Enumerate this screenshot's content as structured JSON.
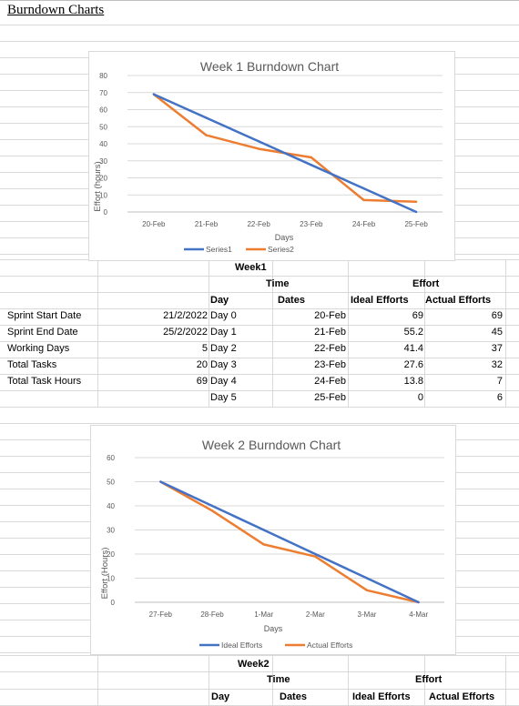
{
  "heading": "Burndown Charts",
  "week1_chart": {
    "title": "Week 1 Burndown Chart",
    "xlabel": "Days",
    "ylabel": "Effort (hours)",
    "legend": [
      "Series1",
      "Series2"
    ]
  },
  "week1_table": {
    "week_label": "Week1",
    "time_header": "Time",
    "effort_header": "Effort",
    "col_day": "Day",
    "col_dates": "Dates",
    "col_ideal": "Ideal Efforts",
    "col_actual": "Actual Efforts",
    "info": [
      {
        "label": "Sprint Start Date",
        "value": "21/2/2022"
      },
      {
        "label": "Sprint End Date",
        "value": "25/2/2022"
      },
      {
        "label": "Working Days",
        "value": "5"
      },
      {
        "label": "Total Tasks",
        "value": "20"
      },
      {
        "label": "Total Task Hours",
        "value": "69"
      },
      {
        "label": "",
        "value": ""
      }
    ],
    "rows": [
      {
        "day": "Day 0",
        "date": "20-Feb",
        "ideal": "69",
        "actual": "69"
      },
      {
        "day": "Day 1",
        "date": "21-Feb",
        "ideal": "55.2",
        "actual": "45"
      },
      {
        "day": "Day 2",
        "date": "22-Feb",
        "ideal": "41.4",
        "actual": "37"
      },
      {
        "day": "Day 3",
        "date": "23-Feb",
        "ideal": "27.6",
        "actual": "32"
      },
      {
        "day": "Day 4",
        "date": "24-Feb",
        "ideal": "13.8",
        "actual": "7"
      },
      {
        "day": "Day 5",
        "date": "25-Feb",
        "ideal": "0",
        "actual": "6"
      }
    ]
  },
  "week2_chart": {
    "title": "Week 2 Burndown Chart",
    "xlabel": "Days",
    "ylabel": "Effort (Hours)",
    "legend": [
      "Ideal Efforts",
      "Actual Efforts"
    ]
  },
  "week2_table": {
    "week_label": "Week2",
    "time_header": "Time",
    "effort_header": "Effort",
    "col_day": "Day",
    "col_dates": "Dates",
    "col_ideal": "Ideal Efforts",
    "col_actual": "Actual Efforts"
  },
  "chart_data": [
    {
      "type": "line",
      "title": "Week 1 Burndown Chart",
      "xlabel": "Days",
      "ylabel": "Effort (hours)",
      "ylim": [
        0,
        80
      ],
      "yticks": [
        0,
        10,
        20,
        30,
        40,
        50,
        60,
        70,
        80
      ],
      "categories": [
        "20-Feb",
        "21-Feb",
        "22-Feb",
        "23-Feb",
        "24-Feb",
        "25-Feb"
      ],
      "series": [
        {
          "name": "Series1",
          "color": "#4472C4",
          "values": [
            69,
            55.2,
            41.4,
            27.6,
            13.8,
            0
          ]
        },
        {
          "name": "Series2",
          "color": "#ED7D31",
          "values": [
            69,
            45,
            37,
            32,
            7,
            6
          ]
        }
      ],
      "grid": true,
      "legend": "bottom"
    },
    {
      "type": "line",
      "title": "Week 2 Burndown Chart",
      "xlabel": "Days",
      "ylabel": "Effort (Hours)",
      "ylim": [
        0,
        60
      ],
      "yticks": [
        0,
        10,
        20,
        30,
        40,
        50,
        60
      ],
      "categories": [
        "27-Feb",
        "28-Feb",
        "1-Mar",
        "2-Mar",
        "3-Mar",
        "4-Mar"
      ],
      "series": [
        {
          "name": "Ideal Efforts",
          "color": "#4472C4",
          "values": [
            50,
            40,
            30,
            20,
            10,
            0
          ]
        },
        {
          "name": "Actual Efforts",
          "color": "#ED7D31",
          "values": [
            50,
            38,
            24,
            19,
            5,
            0
          ]
        }
      ],
      "grid": true,
      "legend": "bottom"
    }
  ]
}
